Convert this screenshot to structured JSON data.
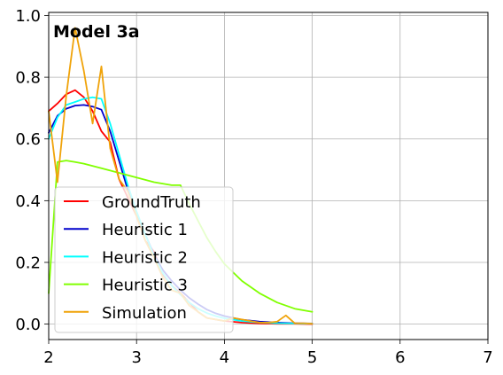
{
  "chart_data": {
    "type": "line",
    "title": "Model 3a",
    "xlabel": "",
    "ylabel": "",
    "xlim": [
      2,
      7
    ],
    "ylim": [
      -0.05,
      1.01
    ],
    "xticks": [
      "2",
      "3",
      "4",
      "5",
      "6",
      "7"
    ],
    "yticks": [
      "0.0",
      "0.2",
      "0.4",
      "0.6",
      "0.8",
      "1.0"
    ],
    "grid": true,
    "legend_position": "lower-left",
    "series": [
      {
        "name": "GroundTruth",
        "color": "#ff0000",
        "x": [
          2.0,
          2.1,
          2.2,
          2.3,
          2.4,
          2.5,
          2.6,
          2.7,
          2.8,
          2.9,
          3.0,
          3.1,
          3.2,
          3.3,
          3.4,
          3.5,
          3.6,
          3.7,
          3.8,
          3.9,
          4.0,
          4.2,
          4.4,
          4.6,
          4.8,
          5.0
        ],
        "y": [
          0.69,
          0.715,
          0.745,
          0.758,
          0.735,
          0.69,
          0.625,
          0.59,
          0.47,
          0.41,
          0.35,
          0.27,
          0.235,
          0.16,
          0.125,
          0.1,
          0.07,
          0.04,
          0.02,
          0.015,
          0.01,
          0.005,
          0.002,
          0.001,
          0.001,
          0.0
        ]
      },
      {
        "name": "Heuristic 1",
        "color": "#0000cc",
        "x": [
          2.0,
          2.1,
          2.2,
          2.3,
          2.4,
          2.5,
          2.6,
          2.7,
          2.8,
          2.9,
          3.0,
          3.1,
          3.2,
          3.3,
          3.4,
          3.5,
          3.6,
          3.7,
          3.8,
          3.9,
          4.0,
          4.2,
          4.4,
          4.6,
          4.8,
          5.0
        ],
        "y": [
          0.62,
          0.675,
          0.698,
          0.708,
          0.71,
          0.705,
          0.695,
          0.625,
          0.53,
          0.435,
          0.355,
          0.29,
          0.225,
          0.175,
          0.14,
          0.11,
          0.085,
          0.065,
          0.047,
          0.035,
          0.026,
          0.014,
          0.008,
          0.005,
          0.003,
          0.002
        ]
      },
      {
        "name": "Heuristic 2",
        "color": "#00ffff",
        "x": [
          2.0,
          2.1,
          2.2,
          2.3,
          2.4,
          2.5,
          2.6,
          2.7,
          2.8,
          2.9,
          3.0,
          3.1,
          3.2,
          3.3,
          3.4,
          3.5,
          3.6,
          3.7,
          3.8,
          3.9,
          4.0,
          4.2,
          4.4,
          4.6,
          4.8,
          5.0
        ],
        "y": [
          0.6,
          0.67,
          0.71,
          0.72,
          0.73,
          0.735,
          0.73,
          0.65,
          0.55,
          0.45,
          0.365,
          0.29,
          0.22,
          0.165,
          0.125,
          0.095,
          0.07,
          0.05,
          0.036,
          0.026,
          0.019,
          0.01,
          0.005,
          0.003,
          0.002,
          0.001
        ]
      },
      {
        "name": "Heuristic 3",
        "color": "#80ff00",
        "x": [
          2.0,
          2.1,
          2.2,
          2.3,
          2.4,
          2.6,
          2.8,
          3.0,
          3.2,
          3.4,
          3.5,
          3.6,
          3.7,
          3.8,
          3.9,
          4.0,
          4.2,
          4.4,
          4.6,
          4.8,
          5.0
        ],
        "y": [
          0.1,
          0.525,
          0.53,
          0.525,
          0.52,
          0.505,
          0.49,
          0.475,
          0.46,
          0.45,
          0.45,
          0.39,
          0.335,
          0.28,
          0.235,
          0.195,
          0.14,
          0.1,
          0.07,
          0.05,
          0.04
        ]
      },
      {
        "name": "Simulation",
        "color": "#f0a30a",
        "x": [
          2.0,
          2.1,
          2.2,
          2.3,
          2.4,
          2.5,
          2.6,
          2.7,
          2.8,
          2.9,
          3.0,
          3.1,
          3.2,
          3.3,
          3.4,
          3.5,
          3.6,
          3.7,
          3.8,
          3.9,
          4.0,
          4.1,
          4.2,
          4.3,
          4.4,
          4.5,
          4.6,
          4.7,
          4.8,
          4.9,
          5.0
        ],
        "y": [
          0.69,
          0.46,
          0.74,
          0.96,
          0.82,
          0.65,
          0.835,
          0.57,
          0.47,
          0.43,
          0.35,
          0.27,
          0.215,
          0.15,
          0.11,
          0.1,
          0.06,
          0.04,
          0.02,
          0.015,
          0.01,
          0.02,
          0.015,
          0.01,
          0.005,
          0.005,
          0.008,
          0.028,
          0.003,
          0.003,
          0.001
        ]
      }
    ]
  }
}
